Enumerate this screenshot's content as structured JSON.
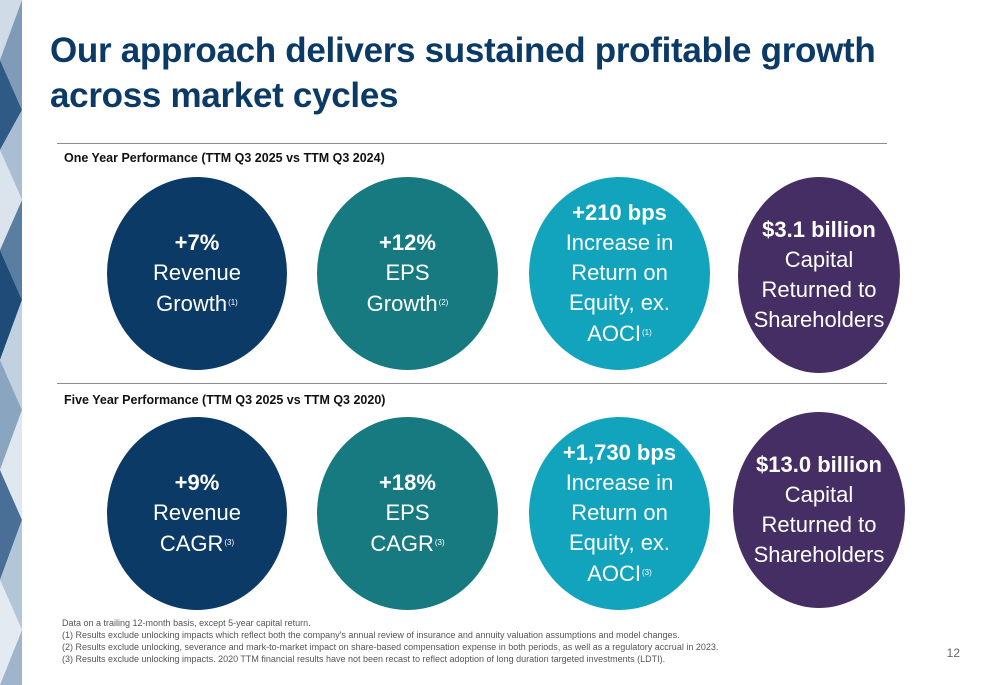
{
  "title": "Our approach delivers sustained profitable growth across market cycles",
  "one_year": {
    "label": "One Year Performance (TTM Q3 2025 vs TTM Q3 2024)",
    "revenue": {
      "value": "+7%",
      "line1": "Revenue",
      "line2": "Growth",
      "note": "(1)"
    },
    "eps": {
      "value": "+12%",
      "line1": "EPS",
      "line2": "Growth",
      "note": "(2)"
    },
    "roe": {
      "value": "+210 bps",
      "line1": "Increase in",
      "line2": "Return on",
      "line3": "Equity, ex.",
      "line4": "AOCI",
      "note": "(1)"
    },
    "capital": {
      "value": "$3.1 billion",
      "line1": "Capital",
      "line2": "Returned to",
      "line3": "Shareholders"
    }
  },
  "five_year": {
    "label": "Five Year Performance (TTM Q3 2025 vs TTM Q3 2020)",
    "revenue": {
      "value": "+9%",
      "line1": "Revenue",
      "line2": "CAGR",
      "note": "(3)"
    },
    "eps": {
      "value": "+18%",
      "line1": "EPS",
      "line2": "CAGR",
      "note": "(3)"
    },
    "roe": {
      "value": "+1,730 bps",
      "line1": "Increase in",
      "line2": "Return on",
      "line3": "Equity, ex.",
      "line4": "AOCI",
      "note": "(3)"
    },
    "capital": {
      "value": "$13.0 billion",
      "line1": "Capital",
      "line2": "Returned to",
      "line3": "Shareholders"
    }
  },
  "footnotes": [
    "Data on a trailing 12-month basis, except 5-year capital return.",
    "(1) Results exclude unlocking impacts which reflect both the company's annual review of insurance and annuity valuation assumptions and model changes.",
    "(2) Results exclude unlocking, severance and mark-to-market impact on share-based compensation expense in both periods, as well as a regulatory accrual in 2023.",
    "(3) Results exclude unlocking impacts. 2020 TTM financial results have not been recast to reflect adoption of long duration targeted investments (LDTI)."
  ],
  "page_number": "12",
  "colors": {
    "navy": "#0b3a66",
    "teal": "#167a80",
    "cyan": "#12a3bd",
    "purple": "#452e63"
  }
}
